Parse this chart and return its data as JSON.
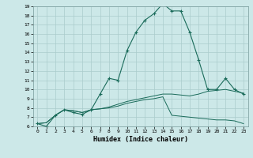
{
  "title": "",
  "xlabel": "Humidex (Indice chaleur)",
  "background_color": "#cce8e8",
  "grid_color": "#aacccc",
  "line_color": "#1a6b5a",
  "xlim": [
    -0.5,
    23.5
  ],
  "ylim": [
    6,
    19
  ],
  "yticks": [
    6,
    7,
    8,
    9,
    10,
    11,
    12,
    13,
    14,
    15,
    16,
    17,
    18,
    19
  ],
  "xticks": [
    0,
    1,
    2,
    3,
    4,
    5,
    6,
    7,
    8,
    9,
    10,
    11,
    12,
    13,
    14,
    15,
    16,
    17,
    18,
    19,
    20,
    21,
    22,
    23
  ],
  "line1_x": [
    0,
    1,
    2,
    3,
    4,
    5,
    6,
    7,
    8,
    9,
    10,
    11,
    12,
    13,
    14,
    15,
    16,
    17,
    18,
    19,
    20,
    21,
    22,
    23
  ],
  "line1_y": [
    6.3,
    6.0,
    7.2,
    7.8,
    7.5,
    7.3,
    7.8,
    9.5,
    11.2,
    11.0,
    14.2,
    16.2,
    17.5,
    18.2,
    19.3,
    18.5,
    18.5,
    16.2,
    13.2,
    10.0,
    10.0,
    11.2,
    10.0,
    9.5
  ],
  "line2_x": [
    0,
    1,
    2,
    3,
    4,
    5,
    6,
    7,
    8,
    9,
    10,
    11,
    12,
    13,
    14,
    15,
    16,
    17,
    18,
    19,
    20,
    21,
    22,
    23
  ],
  "line2_y": [
    6.3,
    6.4,
    7.2,
    7.8,
    7.7,
    7.5,
    7.8,
    7.9,
    8.1,
    8.4,
    8.7,
    8.9,
    9.1,
    9.3,
    9.5,
    9.5,
    9.4,
    9.3,
    9.5,
    9.8,
    9.9,
    10.0,
    9.8,
    9.6
  ],
  "line3_x": [
    0,
    1,
    2,
    3,
    4,
    5,
    6,
    7,
    8,
    9,
    10,
    11,
    12,
    13,
    14,
    15,
    16,
    17,
    18,
    19,
    20,
    21,
    22,
    23
  ],
  "line3_y": [
    6.3,
    6.4,
    7.2,
    7.8,
    7.7,
    7.5,
    7.8,
    7.9,
    8.0,
    8.2,
    8.5,
    8.7,
    8.9,
    9.0,
    9.2,
    7.2,
    7.1,
    7.0,
    6.9,
    6.8,
    6.7,
    6.7,
    6.6,
    6.3
  ]
}
